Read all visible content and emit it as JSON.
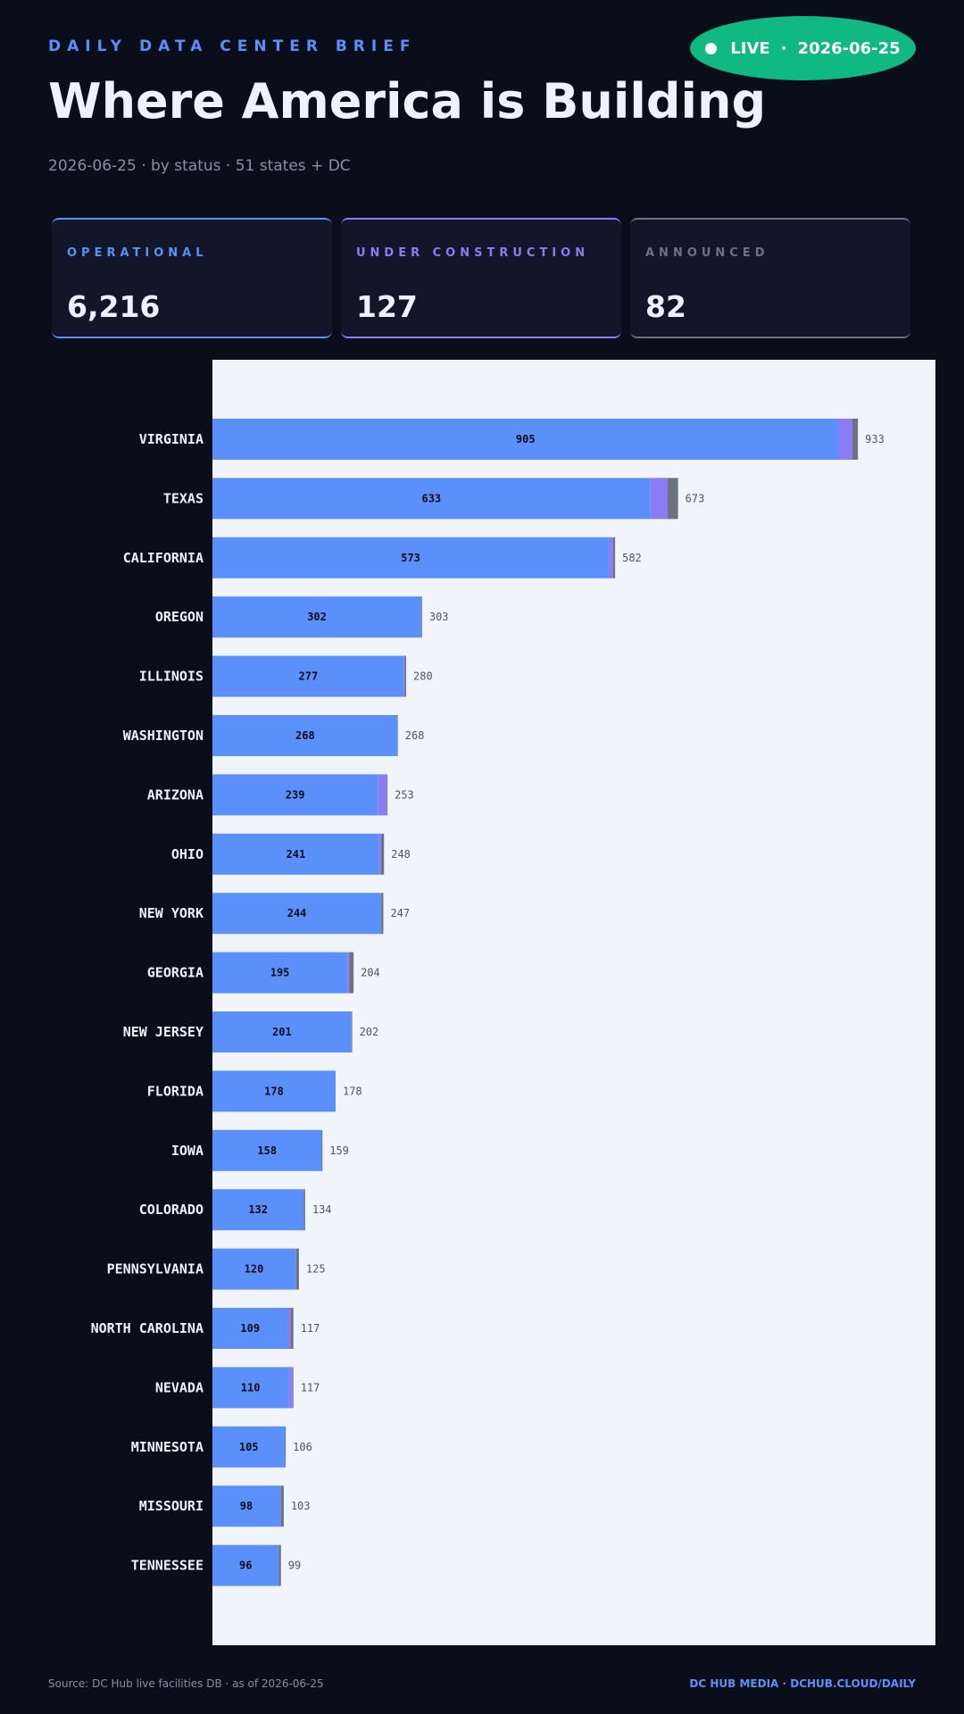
{
  "header": {
    "kicker": "DAILY DATA CENTER BRIEF",
    "title": "Where America is Building",
    "subtitle": "2026-06-25 · by status · 51 states + DC",
    "live_label": "LIVE",
    "live_date": "2026-06-25"
  },
  "stats": [
    {
      "label": "OPERATIONAL",
      "value": "6,216",
      "color": "#5b8ff9"
    },
    {
      "label": "UNDER CONSTRUCTION",
      "value": "127",
      "color": "#8b7cf6"
    },
    {
      "label": "ANNOUNCED",
      "value": "82",
      "color": "#6b7280"
    }
  ],
  "colors": {
    "background": "#0a0d1a",
    "plot_background": "#f1f5fb",
    "operational": "#5b8ff9",
    "under_construction": "#8b7cf6",
    "announced": "#6b7280",
    "live": "#10b981"
  },
  "chart_data": {
    "type": "bar",
    "orientation": "horizontal",
    "stacked": true,
    "categories": [
      "VIRGINIA",
      "TEXAS",
      "CALIFORNIA",
      "OREGON",
      "ILLINOIS",
      "WASHINGTON",
      "ARIZONA",
      "OHIO",
      "NEW YORK",
      "GEORGIA",
      "NEW JERSEY",
      "FLORIDA",
      "IOWA",
      "COLORADO",
      "PENNSYLVANIA",
      "NORTH CAROLINA",
      "NEVADA",
      "MINNESOTA",
      "MISSOURI",
      "TENNESSEE"
    ],
    "series": [
      {
        "name": "OPERATIONAL",
        "values": [
          905,
          633,
          573,
          302,
          277,
          268,
          239,
          241,
          244,
          195,
          201,
          178,
          158,
          132,
          120,
          109,
          110,
          105,
          98,
          96
        ]
      },
      {
        "name": "UNDER CONSTRUCTION",
        "values": [
          20,
          25,
          6,
          0,
          1,
          0,
          13,
          3,
          0,
          3,
          0,
          0,
          0,
          0,
          1,
          4,
          6,
          0,
          1,
          0
        ]
      },
      {
        "name": "ANNOUNCED",
        "values": [
          8,
          15,
          3,
          1,
          2,
          0,
          1,
          4,
          3,
          6,
          1,
          0,
          1,
          2,
          4,
          4,
          1,
          1,
          4,
          3
        ]
      }
    ],
    "totals": [
      933,
      673,
      582,
      303,
      280,
      268,
      253,
      248,
      247,
      204,
      202,
      178,
      159,
      134,
      125,
      117,
      117,
      106,
      103,
      99
    ],
    "xlim": [
      0,
      1045
    ],
    "grid": false,
    "legend": "none"
  },
  "footer": {
    "source": "Source: DC Hub live facilities DB · as of 2026-06-25",
    "brand": "DC HUB MEDIA · DCHUB.CLOUD/DAILY"
  }
}
